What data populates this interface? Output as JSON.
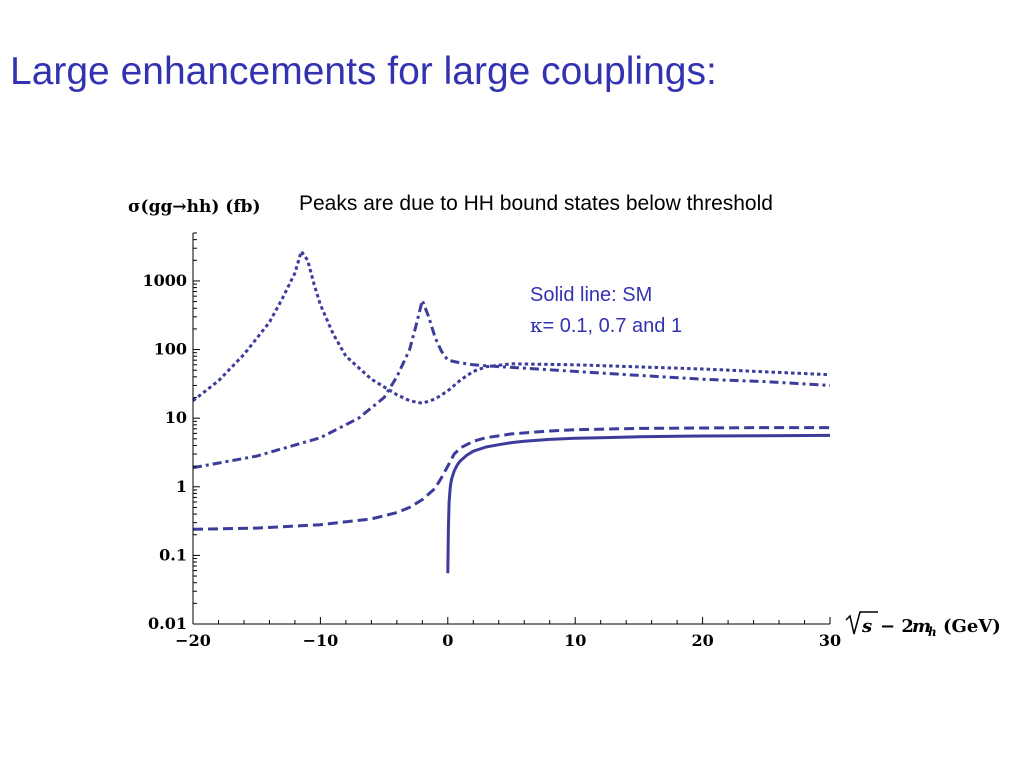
{
  "slide": {
    "title": "Large enhancements for large couplings:",
    "caption": "Peaks are due to HH bound states below threshold",
    "legend_line1": "Solid line: SM",
    "legend_kappa_symbol": "κ",
    "legend_line2_rest": "= 0.1, 0.7 and 1"
  },
  "colors": {
    "title": "#3333b2",
    "curve": "#3c3c9c",
    "text": "#000000"
  },
  "chart_data": {
    "type": "line",
    "y_scale": "log",
    "ylabel": "σ(gg→hh) (fb)",
    "xlabel_sqrt": "s",
    "xlabel_rest": "− 2",
    "xlabel_m": "m",
    "xlabel_sub": "h",
    "xlabel_unit": "(GeV)",
    "xlim": [
      -20,
      30
    ],
    "ylim": [
      0.01,
      5000
    ],
    "x_ticks": [
      -20,
      -10,
      0,
      10,
      20,
      30
    ],
    "x_tick_labels": [
      "−20",
      "−10",
      "0",
      "10",
      "20",
      "30"
    ],
    "y_ticks": [
      0.01,
      0.1,
      1,
      10,
      100,
      1000
    ],
    "y_tick_labels": [
      "0.01",
      "0.1",
      "1",
      "10",
      "100",
      "1000"
    ],
    "grid": false,
    "series": [
      {
        "style": "solid",
        "x": [
          0.0,
          0.05,
          0.1,
          0.2,
          0.3,
          0.5,
          0.75,
          1,
          1.5,
          2,
          3,
          4,
          5,
          6,
          8,
          10,
          12,
          15,
          18,
          20,
          25,
          30
        ],
        "y": [
          0.055,
          0.25,
          0.6,
          1.0,
          1.3,
          1.7,
          2.1,
          2.4,
          2.9,
          3.3,
          3.8,
          4.1,
          4.4,
          4.6,
          4.9,
          5.1,
          5.2,
          5.35,
          5.45,
          5.5,
          5.55,
          5.6
        ]
      },
      {
        "style": "dashed",
        "x": [
          -20,
          -15,
          -10,
          -6,
          -4,
          -3,
          -2,
          -1,
          -0.5,
          0,
          0.5,
          1,
          2,
          3,
          5,
          8,
          10,
          15,
          20,
          25,
          30
        ],
        "y": [
          0.24,
          0.25,
          0.28,
          0.34,
          0.42,
          0.5,
          0.65,
          0.95,
          1.35,
          2.0,
          3.0,
          3.7,
          4.6,
          5.2,
          5.9,
          6.5,
          6.8,
          7.1,
          7.2,
          7.3,
          7.3
        ]
      },
      {
        "style": "dash-dot",
        "x": [
          -20,
          -15,
          -10,
          -7,
          -5,
          -4,
          -3,
          -2.5,
          -2,
          -1.5,
          -1,
          -0.5,
          0,
          1,
          2,
          3,
          5,
          10,
          15,
          20,
          25,
          30
        ],
        "y": [
          1.9,
          2.8,
          5.2,
          10,
          20,
          40,
          100,
          220,
          520,
          300,
          150,
          95,
          70,
          64,
          60,
          58,
          55,
          48,
          42,
          37,
          34,
          30
        ]
      },
      {
        "style": "dotted",
        "x": [
          -20,
          -18,
          -16,
          -14,
          -13,
          -12,
          -11.5,
          -11,
          -10.5,
          -10,
          -9,
          -8,
          -6,
          -4,
          -3,
          -2,
          -1,
          0,
          1,
          2,
          3,
          5,
          10,
          20,
          30
        ],
        "y": [
          18,
          35,
          85,
          250,
          550,
          1300,
          2700,
          2000,
          900,
          450,
          170,
          80,
          37,
          22,
          18,
          16.5,
          19,
          25,
          36,
          48,
          56,
          62,
          60,
          52,
          43
        ]
      }
    ]
  }
}
